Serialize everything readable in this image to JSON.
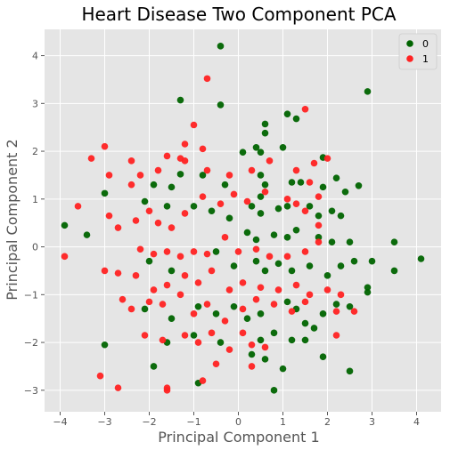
{
  "chart_data": {
    "type": "scatter",
    "title": "Heart Disease Two Component PCA",
    "xlabel": "Principal Component 1",
    "ylabel": "Principal Component 2",
    "xlim": [
      -4.35,
      4.55
    ],
    "ylim": [
      -3.45,
      4.55
    ],
    "xticks": [
      -4,
      -3,
      -2,
      -1,
      0,
      1,
      2,
      3,
      4
    ],
    "yticks": [
      -3,
      -2,
      -1,
      0,
      1,
      2,
      3,
      4
    ],
    "grid": true,
    "legend_position": "top-right",
    "series": [
      {
        "name": "0",
        "color": "#006400",
        "points": [
          [
            -0.4,
            4.2
          ],
          [
            -1.3,
            3.07
          ],
          [
            -0.4,
            2.97
          ],
          [
            2.9,
            3.25
          ],
          [
            1.1,
            2.78
          ],
          [
            0.6,
            2.57
          ],
          [
            1.3,
            2.68
          ],
          [
            0.6,
            2.38
          ],
          [
            0.4,
            2.08
          ],
          [
            0.5,
            1.98
          ],
          [
            1.0,
            2.08
          ],
          [
            0.1,
            1.98
          ],
          [
            1.9,
            1.87
          ],
          [
            2.2,
            1.44
          ],
          [
            2.7,
            1.28
          ],
          [
            -3.0,
            1.12
          ],
          [
            -1.9,
            1.3
          ],
          [
            -1.5,
            1.25
          ],
          [
            -1.3,
            1.52
          ],
          [
            -0.8,
            1.5
          ],
          [
            -0.3,
            1.3
          ],
          [
            0.5,
            1.5
          ],
          [
            0.6,
            1.3
          ],
          [
            0.5,
            1.05
          ],
          [
            1.2,
            1.35
          ],
          [
            1.4,
            1.35
          ],
          [
            1.9,
            1.25
          ],
          [
            2.4,
            1.15
          ],
          [
            -3.9,
            0.45
          ],
          [
            -3.4,
            0.25
          ],
          [
            -2.1,
            0.95
          ],
          [
            -1.6,
            0.85
          ],
          [
            -1.0,
            0.85
          ],
          [
            -0.6,
            0.75
          ],
          [
            -0.2,
            0.6
          ],
          [
            0.3,
            0.85
          ],
          [
            0.5,
            0.7
          ],
          [
            0.9,
            0.8
          ],
          [
            1.1,
            0.85
          ],
          [
            1.6,
            0.85
          ],
          [
            1.8,
            0.65
          ],
          [
            2.1,
            0.75
          ],
          [
            2.3,
            0.65
          ],
          [
            0.2,
            0.3
          ],
          [
            0.4,
            0.15
          ],
          [
            0.8,
            0.25
          ],
          [
            1.1,
            0.2
          ],
          [
            1.3,
            0.35
          ],
          [
            1.8,
            0.2
          ],
          [
            2.1,
            0.1
          ],
          [
            2.5,
            0.1
          ],
          [
            3.5,
            0.1
          ],
          [
            3.0,
            -0.3
          ],
          [
            4.1,
            -0.25
          ],
          [
            3.5,
            -0.5
          ],
          [
            -2.0,
            -0.3
          ],
          [
            -1.5,
            -0.5
          ],
          [
            -0.5,
            -0.1
          ],
          [
            -0.1,
            -0.4
          ],
          [
            0.4,
            -0.3
          ],
          [
            0.6,
            -0.5
          ],
          [
            0.9,
            -0.35
          ],
          [
            1.2,
            -0.5
          ],
          [
            1.6,
            -0.4
          ],
          [
            2.0,
            -0.6
          ],
          [
            2.3,
            -0.4
          ],
          [
            2.6,
            -0.3
          ],
          [
            2.9,
            -0.85
          ],
          [
            2.9,
            -0.95
          ],
          [
            -2.1,
            -1.3
          ],
          [
            -1.5,
            -1.5
          ],
          [
            -0.9,
            -1.25
          ],
          [
            -0.5,
            -1.4
          ],
          [
            -0.1,
            -1.25
          ],
          [
            0.2,
            -1.5
          ],
          [
            0.5,
            -1.4
          ],
          [
            1.1,
            -1.15
          ],
          [
            1.3,
            -1.3
          ],
          [
            1.5,
            -1.6
          ],
          [
            1.9,
            -1.4
          ],
          [
            2.2,
            -1.2
          ],
          [
            2.5,
            -1.25
          ],
          [
            -1.6,
            -2.0
          ],
          [
            -1.0,
            -1.85
          ],
          [
            -0.4,
            -2.0
          ],
          [
            0.5,
            -1.95
          ],
          [
            0.8,
            -1.8
          ],
          [
            1.2,
            -1.95
          ],
          [
            1.5,
            -1.95
          ],
          [
            1.7,
            -1.7
          ],
          [
            -3.0,
            -2.05
          ],
          [
            -1.9,
            -2.5
          ],
          [
            -0.9,
            -2.85
          ],
          [
            0.3,
            -2.25
          ],
          [
            0.6,
            -2.35
          ],
          [
            1.0,
            -2.55
          ],
          [
            1.9,
            -2.3
          ],
          [
            2.5,
            -2.6
          ],
          [
            0.8,
            -3.0
          ]
        ]
      },
      {
        "name": "1",
        "color": "#ff2222",
        "points": [
          [
            -0.7,
            3.52
          ],
          [
            1.5,
            2.88
          ],
          [
            -1.0,
            2.55
          ],
          [
            -1.2,
            2.15
          ],
          [
            -0.8,
            2.05
          ],
          [
            -1.3,
            1.85
          ],
          [
            -1.6,
            1.9
          ],
          [
            -2.4,
            1.8
          ],
          [
            -3.0,
            2.1
          ],
          [
            -3.3,
            1.85
          ],
          [
            -2.9,
            1.5
          ],
          [
            -2.4,
            1.3
          ],
          [
            -2.2,
            1.5
          ],
          [
            -1.8,
            1.6
          ],
          [
            -1.2,
            1.8
          ],
          [
            -0.7,
            1.6
          ],
          [
            -0.2,
            1.5
          ],
          [
            0.3,
            1.6
          ],
          [
            0.7,
            1.8
          ],
          [
            1.3,
            1.6
          ],
          [
            1.7,
            1.75
          ],
          [
            2.0,
            1.85
          ],
          [
            1.6,
            1.35
          ],
          [
            1.8,
            1.05
          ],
          [
            1.3,
            0.9
          ],
          [
            -3.6,
            0.85
          ],
          [
            -2.9,
            0.65
          ],
          [
            -2.7,
            0.4
          ],
          [
            -2.3,
            0.55
          ],
          [
            -2.0,
            0.75
          ],
          [
            -1.8,
            0.5
          ],
          [
            -1.5,
            0.4
          ],
          [
            -1.2,
            0.7
          ],
          [
            -0.8,
            1.05
          ],
          [
            -0.4,
            0.9
          ],
          [
            -0.1,
            1.1
          ],
          [
            0.2,
            0.95
          ],
          [
            0.6,
            1.15
          ],
          [
            1.1,
            1.0
          ],
          [
            1.5,
            0.75
          ],
          [
            1.8,
            0.45
          ],
          [
            -3.9,
            -0.2
          ],
          [
            -3.0,
            -0.5
          ],
          [
            -2.7,
            -0.55
          ],
          [
            -2.2,
            -0.05
          ],
          [
            -1.9,
            -0.15
          ],
          [
            -1.6,
            -0.1
          ],
          [
            -1.3,
            -0.2
          ],
          [
            -1.0,
            -0.1
          ],
          [
            -0.7,
            -0.15
          ],
          [
            -0.3,
            0.2
          ],
          [
            0.0,
            -0.1
          ],
          [
            0.4,
            -0.05
          ],
          [
            0.7,
            -0.2
          ],
          [
            1.1,
            -0.2
          ],
          [
            1.5,
            -0.1
          ],
          [
            1.8,
            0.1
          ],
          [
            -2.3,
            -0.6
          ],
          [
            -1.9,
            -0.9
          ],
          [
            -1.6,
            -0.8
          ],
          [
            -1.2,
            -0.6
          ],
          [
            -0.9,
            -0.75
          ],
          [
            -0.6,
            -0.5
          ],
          [
            -0.2,
            -0.9
          ],
          [
            0.1,
            -0.75
          ],
          [
            0.5,
            -0.85
          ],
          [
            0.9,
            -0.9
          ],
          [
            1.3,
            -0.8
          ],
          [
            1.6,
            -1.0
          ],
          [
            2.0,
            -0.9
          ],
          [
            2.3,
            -1.0
          ],
          [
            -2.6,
            -1.1
          ],
          [
            -2.4,
            -1.3
          ],
          [
            -2.0,
            -1.15
          ],
          [
            -1.7,
            -1.2
          ],
          [
            -1.3,
            -1.0
          ],
          [
            -1.0,
            -1.4
          ],
          [
            -0.7,
            -1.2
          ],
          [
            -0.3,
            -1.55
          ],
          [
            0.1,
            -1.3
          ],
          [
            0.4,
            -1.1
          ],
          [
            0.8,
            -1.2
          ],
          [
            1.2,
            -1.35
          ],
          [
            1.5,
            -1.15
          ],
          [
            2.2,
            -1.35
          ],
          [
            2.6,
            -1.35
          ],
          [
            -2.1,
            -1.85
          ],
          [
            -1.7,
            -1.95
          ],
          [
            -1.2,
            -1.85
          ],
          [
            -0.9,
            -2.0
          ],
          [
            -0.6,
            -1.8
          ],
          [
            -0.2,
            -2.15
          ],
          [
            0.1,
            -1.8
          ],
          [
            0.3,
            -2.05
          ],
          [
            0.6,
            -2.1
          ],
          [
            2.2,
            -1.85
          ],
          [
            -3.1,
            -2.7
          ],
          [
            -2.7,
            -2.95
          ],
          [
            -1.6,
            -2.95
          ],
          [
            -1.6,
            -3.0
          ],
          [
            -0.8,
            -2.8
          ],
          [
            -0.5,
            -2.45
          ],
          [
            0.3,
            -2.5
          ]
        ]
      }
    ]
  }
}
